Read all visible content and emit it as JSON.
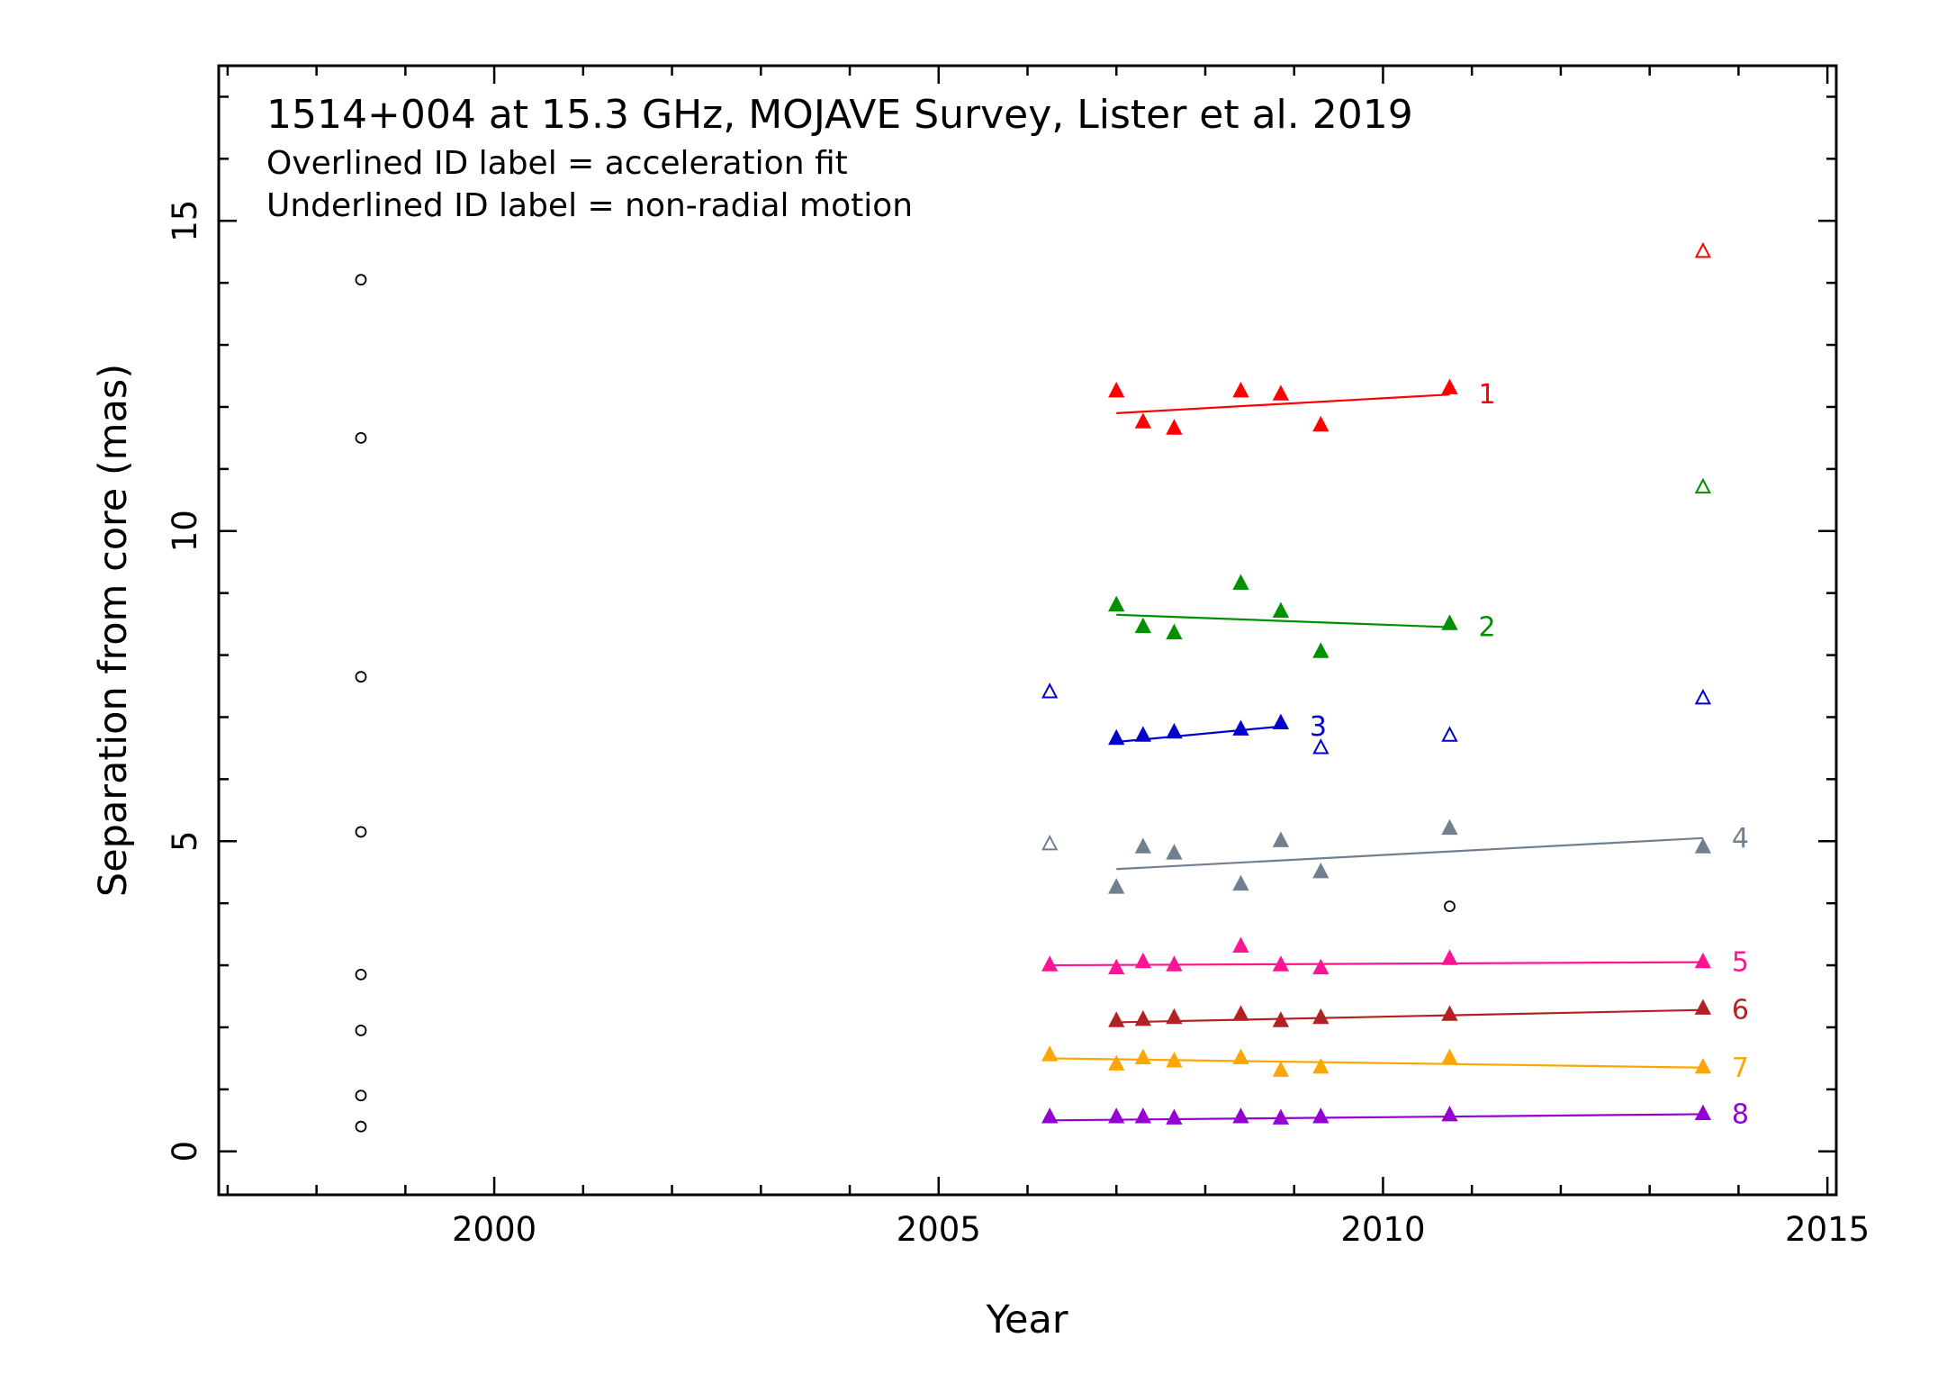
{
  "chart_data": {
    "type": "scatter",
    "title": "1514+004 at 15.3 GHz, MOJAVE Survey, Lister et al. 2019",
    "subtitle_lines": [
      "Overlined ID label = acceleration fit",
      "Underlined ID label = non-radial motion"
    ],
    "xlabel": "Year",
    "ylabel": "Separation from core (mas)",
    "xlim": [
      1996.9,
      2015.1
    ],
    "ylim": [
      -0.7,
      17.5
    ],
    "xticks": [
      2000,
      2005,
      2010,
      2015
    ],
    "yticks": [
      0,
      5,
      10,
      15
    ],
    "grid": false,
    "series": [
      {
        "name": "1",
        "color": "#ff0000",
        "points": [
          [
            2007.0,
            12.25
          ],
          [
            2007.3,
            11.75
          ],
          [
            2007.65,
            11.65
          ],
          [
            2008.4,
            12.25
          ],
          [
            2008.85,
            12.2
          ],
          [
            2009.3,
            11.7
          ],
          [
            2010.75,
            12.3
          ]
        ],
        "fit": [
          [
            2007.0,
            11.9
          ],
          [
            2010.75,
            12.2
          ]
        ],
        "extra_points": [
          [
            2013.6,
            14.5
          ]
        ]
      },
      {
        "name": "2",
        "color": "#009000",
        "points": [
          [
            2007.0,
            8.8
          ],
          [
            2007.3,
            8.45
          ],
          [
            2007.65,
            8.35
          ],
          [
            2008.4,
            9.15
          ],
          [
            2008.85,
            8.7
          ],
          [
            2009.3,
            8.05
          ],
          [
            2010.75,
            8.5
          ]
        ],
        "fit": [
          [
            2007.0,
            8.65
          ],
          [
            2010.75,
            8.45
          ]
        ],
        "extra_points": [
          [
            2013.6,
            10.7
          ]
        ]
      },
      {
        "name": "3",
        "color": "#0000cc",
        "points": [
          [
            2007.0,
            6.65
          ],
          [
            2007.3,
            6.7
          ],
          [
            2007.65,
            6.75
          ],
          [
            2008.4,
            6.8
          ],
          [
            2008.85,
            6.9
          ]
        ],
        "fit": [
          [
            2007.0,
            6.6
          ],
          [
            2008.85,
            6.85
          ]
        ],
        "extra_points": [
          [
            2006.25,
            7.4
          ],
          [
            2009.3,
            6.5
          ],
          [
            2010.75,
            6.7
          ],
          [
            2013.6,
            7.3
          ]
        ]
      },
      {
        "name": "4",
        "color": "#708090",
        "points": [
          [
            2007.0,
            4.25
          ],
          [
            2007.3,
            4.9
          ],
          [
            2007.65,
            4.8
          ],
          [
            2008.4,
            4.3
          ],
          [
            2008.85,
            5.0
          ],
          [
            2009.3,
            4.5
          ],
          [
            2010.75,
            5.2
          ],
          [
            2013.6,
            4.9
          ]
        ],
        "fit": [
          [
            2007.0,
            4.55
          ],
          [
            2013.6,
            5.05
          ]
        ],
        "extra_points": [
          [
            2006.25,
            4.95
          ]
        ]
      },
      {
        "name": "5",
        "color": "#ff1493",
        "points": [
          [
            2006.25,
            3.0
          ],
          [
            2007.0,
            2.95
          ],
          [
            2007.3,
            3.05
          ],
          [
            2007.65,
            3.0
          ],
          [
            2008.4,
            3.3
          ],
          [
            2008.85,
            3.0
          ],
          [
            2009.3,
            2.95
          ],
          [
            2010.75,
            3.1
          ],
          [
            2013.6,
            3.05
          ]
        ],
        "fit": [
          [
            2006.25,
            3.0
          ],
          [
            2013.6,
            3.05
          ]
        ],
        "extra_points": []
      },
      {
        "name": "6",
        "color": "#b22222",
        "points": [
          [
            2007.0,
            2.1
          ],
          [
            2007.3,
            2.12
          ],
          [
            2007.65,
            2.15
          ],
          [
            2008.4,
            2.2
          ],
          [
            2008.85,
            2.1
          ],
          [
            2009.3,
            2.15
          ],
          [
            2010.75,
            2.2
          ],
          [
            2013.6,
            2.3
          ]
        ],
        "fit": [
          [
            2007.0,
            2.08
          ],
          [
            2013.6,
            2.28
          ]
        ],
        "extra_points": []
      },
      {
        "name": "7",
        "color": "#ffa500",
        "points": [
          [
            2006.25,
            1.55
          ],
          [
            2007.0,
            1.4
          ],
          [
            2007.3,
            1.5
          ],
          [
            2007.65,
            1.45
          ],
          [
            2008.4,
            1.5
          ],
          [
            2008.85,
            1.3
          ],
          [
            2009.3,
            1.35
          ],
          [
            2010.75,
            1.5
          ],
          [
            2013.6,
            1.35
          ]
        ],
        "fit": [
          [
            2006.25,
            1.5
          ],
          [
            2013.6,
            1.35
          ]
        ],
        "extra_points": []
      },
      {
        "name": "8",
        "color": "#9400d3",
        "points": [
          [
            2006.25,
            0.55
          ],
          [
            2007.0,
            0.55
          ],
          [
            2007.3,
            0.55
          ],
          [
            2007.65,
            0.53
          ],
          [
            2008.4,
            0.55
          ],
          [
            2008.85,
            0.53
          ],
          [
            2009.3,
            0.55
          ],
          [
            2010.75,
            0.58
          ],
          [
            2013.6,
            0.6
          ]
        ],
        "fit": [
          [
            2006.25,
            0.5
          ],
          [
            2013.6,
            0.6
          ]
        ],
        "extra_points": []
      }
    ],
    "unassigned_points": {
      "color": "#000000",
      "points": [
        [
          1998.5,
          14.05
        ],
        [
          1998.5,
          11.5
        ],
        [
          1998.5,
          7.65
        ],
        [
          1998.5,
          5.15
        ],
        [
          1998.5,
          2.85
        ],
        [
          1998.5,
          1.95
        ],
        [
          1998.5,
          0.9
        ],
        [
          1998.5,
          0.4
        ],
        [
          2010.75,
          3.95
        ]
      ]
    }
  }
}
